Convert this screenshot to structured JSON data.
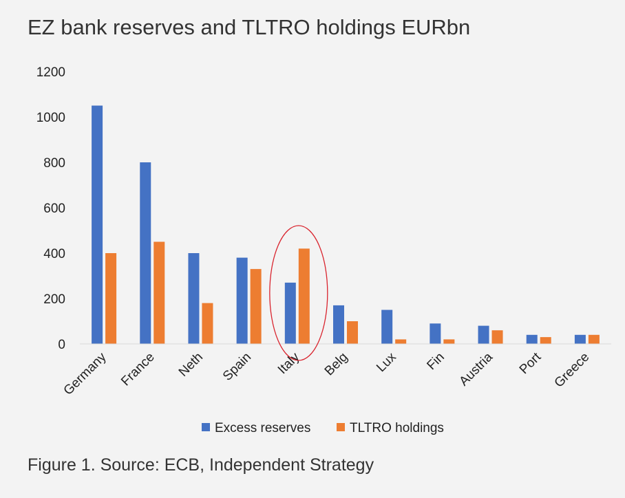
{
  "title": "EZ bank reserves and TLTRO holdings EURbn",
  "caption": "Figure 1. Source: ECB, Independent Strategy",
  "colors": {
    "excess_reserves": "#4472C4",
    "tltro_holdings": "#ED7D31",
    "highlight_ellipse": "#D9232D",
    "axis_line": "#D9D9D9"
  },
  "chart_data": {
    "type": "bar",
    "title": "EZ bank reserves and TLTRO holdings EURbn",
    "xlabel": "",
    "ylabel": "",
    "ylim": [
      0,
      1200
    ],
    "yticks": [
      0,
      200,
      400,
      600,
      800,
      1000,
      1200
    ],
    "grid": false,
    "legend_position": "bottom",
    "categories": [
      "Germany",
      "France",
      "Neth",
      "Spain",
      "Italy",
      "Belg",
      "Lux",
      "Fin",
      "Austria",
      "Port",
      "Greece"
    ],
    "series": [
      {
        "name": "Excess reserves",
        "values": [
          1050,
          800,
          400,
          380,
          270,
          170,
          150,
          90,
          80,
          40,
          40
        ]
      },
      {
        "name": "TLTRO holdings",
        "values": [
          400,
          450,
          180,
          330,
          420,
          100,
          20,
          20,
          60,
          30,
          40
        ]
      }
    ],
    "annotations": [
      {
        "type": "ellipse",
        "category": "Italy"
      }
    ]
  }
}
